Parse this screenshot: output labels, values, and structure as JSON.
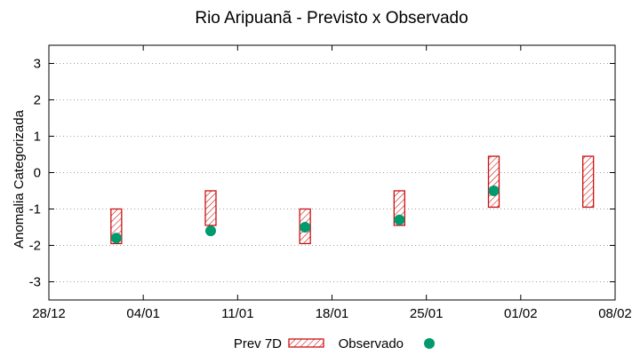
{
  "chart_data": {
    "type": "box",
    "title": "Rio Aripuanã - Previsto x Observado",
    "xlabel": "",
    "ylabel": "Anomalia Categorizada",
    "xlim": [
      "2021-12-28",
      "2022-02-08"
    ],
    "ylim": [
      -3.5,
      3.5
    ],
    "x_ticks": [
      "28/12",
      "04/01",
      "11/01",
      "18/01",
      "25/01",
      "01/02",
      "08/02"
    ],
    "x_tick_dates": [
      "2021-12-28",
      "2022-01-04",
      "2022-01-11",
      "2022-01-18",
      "2022-01-25",
      "2022-02-01",
      "2022-02-08"
    ],
    "y_ticks": [
      3,
      2,
      1,
      0,
      -1,
      -2,
      -3
    ],
    "y_tick_labels": [
      "3",
      "2",
      "1",
      "0",
      "-1",
      "-2",
      "-3"
    ],
    "grid": true,
    "legend_position": "bottom",
    "series": [
      {
        "name": "Prev 7D",
        "style": "hatched-box",
        "color": "#cc1010",
        "points": [
          {
            "x": "2022-01-02",
            "low": -1.95,
            "high": -1.0
          },
          {
            "x": "2022-01-09",
            "low": -1.45,
            "high": -0.5
          },
          {
            "x": "2022-01-16",
            "low": -1.95,
            "high": -1.0
          },
          {
            "x": "2022-01-23",
            "low": -1.45,
            "high": -0.5
          },
          {
            "x": "2022-01-30",
            "low": -0.95,
            "high": 0.45
          },
          {
            "x": "2022-02-06",
            "low": -0.95,
            "high": 0.45
          }
        ]
      },
      {
        "name": "Observado",
        "style": "point",
        "color": "#009a6e",
        "points": [
          {
            "x": "2022-01-02",
            "y": -1.8
          },
          {
            "x": "2022-01-09",
            "y": -1.6
          },
          {
            "x": "2022-01-16",
            "y": -1.5
          },
          {
            "x": "2022-01-23",
            "y": -1.3
          },
          {
            "x": "2022-01-30",
            "y": -0.5
          }
        ]
      }
    ]
  }
}
